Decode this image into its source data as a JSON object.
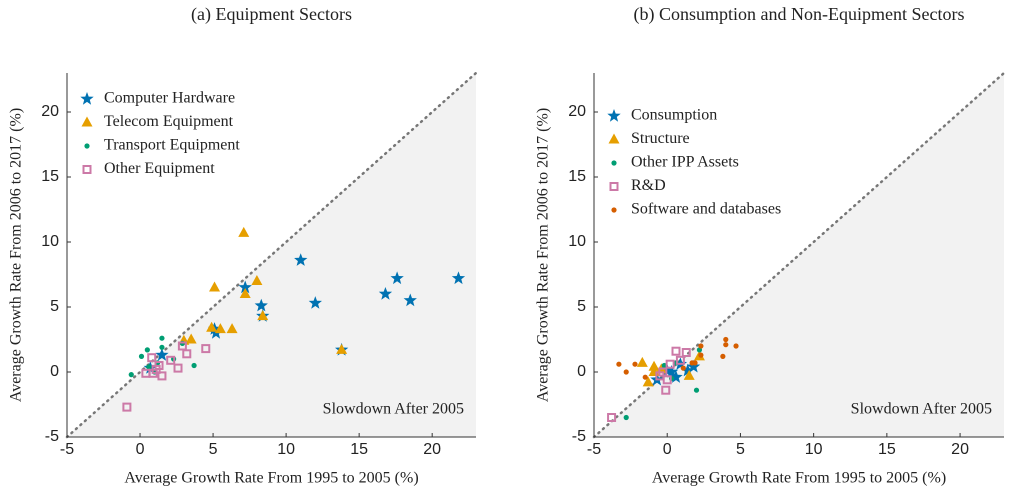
{
  "chart_data": [
    {
      "type": "scatter",
      "title": "(a) Equipment Sectors",
      "xlabel": "Average Growth Rate From 1995 to 2005 (%)",
      "ylabel": "Average Growth Rate From 2006 to 2017 (%)",
      "annotation": "Slowdown After 2005",
      "xlim": [
        -5,
        23
      ],
      "ylim": [
        -5,
        23
      ],
      "xticks": [
        -5,
        0,
        5,
        10,
        15,
        20
      ],
      "yticks": [
        -5,
        0,
        5,
        10,
        15,
        20
      ],
      "grid": false,
      "legend": "upper left",
      "series": [
        {
          "name": "Computer Hardware",
          "color": "#0072b2",
          "marker": "star",
          "x": [
            11.0,
            7.2,
            8.3,
            8.4,
            12.0,
            17.6,
            16.8,
            18.5,
            21.8,
            5.1,
            5.2,
            13.8,
            1.5,
            0.7
          ],
          "values": [
            8.6,
            6.5,
            5.1,
            4.3,
            5.3,
            7.2,
            6.0,
            5.5,
            7.2,
            3.3,
            3.0,
            1.7,
            1.3,
            0.3
          ]
        },
        {
          "name": "Telecom Equipment",
          "color": "#e69f00",
          "marker": "triangle",
          "x": [
            7.1,
            5.1,
            7.2,
            8.0,
            8.4,
            4.9,
            5.5,
            6.3,
            3.5,
            3.0,
            13.8
          ],
          "values": [
            10.7,
            6.5,
            6.0,
            7.0,
            4.3,
            3.4,
            3.3,
            3.3,
            2.5,
            2.4,
            1.7
          ]
        },
        {
          "name": "Transport Equipment",
          "color": "#009e73",
          "marker": "circle",
          "x": [
            -0.6,
            0.5,
            1.5,
            1.5,
            0.1,
            0.6,
            1.0,
            2.3,
            3.7,
            2.9,
            1.2
          ],
          "values": [
            -0.2,
            1.7,
            2.6,
            1.9,
            1.2,
            0.4,
            0.0,
            1.0,
            0.5,
            2.2,
            0.7
          ]
        },
        {
          "name": "Other Equipment",
          "color": "#cc79a7",
          "marker": "square",
          "x": [
            -0.9,
            0.4,
            0.8,
            1.3,
            1.5,
            1.1,
            2.1,
            2.6,
            2.9,
            3.2,
            4.5,
            0.9
          ],
          "values": [
            -2.7,
            -0.1,
            1.1,
            0.5,
            -0.3,
            0.2,
            0.9,
            0.3,
            2.0,
            1.4,
            1.8,
            -0.1
          ]
        }
      ]
    },
    {
      "type": "scatter",
      "title": "(b) Consumption and Non-Equipment Sectors",
      "xlabel": "Average Growth Rate From 1995 to 2005 (%)",
      "ylabel": "Average Growth Rate From 2006 to 2017 (%)",
      "annotation": "Slowdown After 2005",
      "xlim": [
        -5,
        23
      ],
      "ylim": [
        -5,
        23
      ],
      "xticks": [
        -5,
        0,
        5,
        10,
        15,
        20
      ],
      "yticks": [
        -5,
        0,
        5,
        10,
        15,
        20
      ],
      "grid": false,
      "legend": "upper left",
      "series": [
        {
          "name": "Consumption",
          "color": "#0072b2",
          "marker": "star",
          "x": [
            -0.7,
            0.3,
            0.9,
            1.4,
            1.8,
            0.6,
            0.0
          ],
          "values": [
            -0.6,
            0.0,
            0.6,
            0.1,
            0.4,
            -0.4,
            0.1
          ]
        },
        {
          "name": "Structure",
          "color": "#e69f00",
          "marker": "triangle",
          "x": [
            -1.7,
            -1.3,
            -0.9,
            -0.4,
            1.5,
            2.2,
            -0.9
          ],
          "values": [
            0.7,
            -0.8,
            0.0,
            0.2,
            -0.3,
            1.2,
            0.4
          ]
        },
        {
          "name": "Other IPP Assets",
          "color": "#009e73",
          "marker": "circle",
          "x": [
            -2.8,
            0.6,
            2.0,
            0.3,
            2.2,
            -0.2
          ],
          "values": [
            -3.5,
            0.7,
            -1.4,
            -0.5,
            1.7,
            0.5
          ]
        },
        {
          "name": "R&D",
          "color": "#cc79a7",
          "marker": "square",
          "x": [
            -3.8,
            -0.1,
            0.0,
            0.6,
            1.3,
            0.2,
            -0.3,
            0.9,
            -0.5
          ],
          "values": [
            -3.5,
            -1.4,
            -0.6,
            1.6,
            1.5,
            0.6,
            0.0,
            0.9,
            -0.3
          ]
        },
        {
          "name": "Software and databases",
          "color": "#d55e00",
          "marker": "circle",
          "x": [
            -2.8,
            -3.3,
            -2.2,
            -1.5,
            2.3,
            2.3,
            4.0,
            4.0,
            4.7,
            3.8,
            1.7,
            1.1,
            1.9
          ],
          "values": [
            0.0,
            0.6,
            0.6,
            -0.4,
            2.0,
            1.3,
            2.5,
            2.1,
            2.0,
            1.2,
            0.7,
            0.3,
            0.7
          ]
        }
      ]
    }
  ]
}
